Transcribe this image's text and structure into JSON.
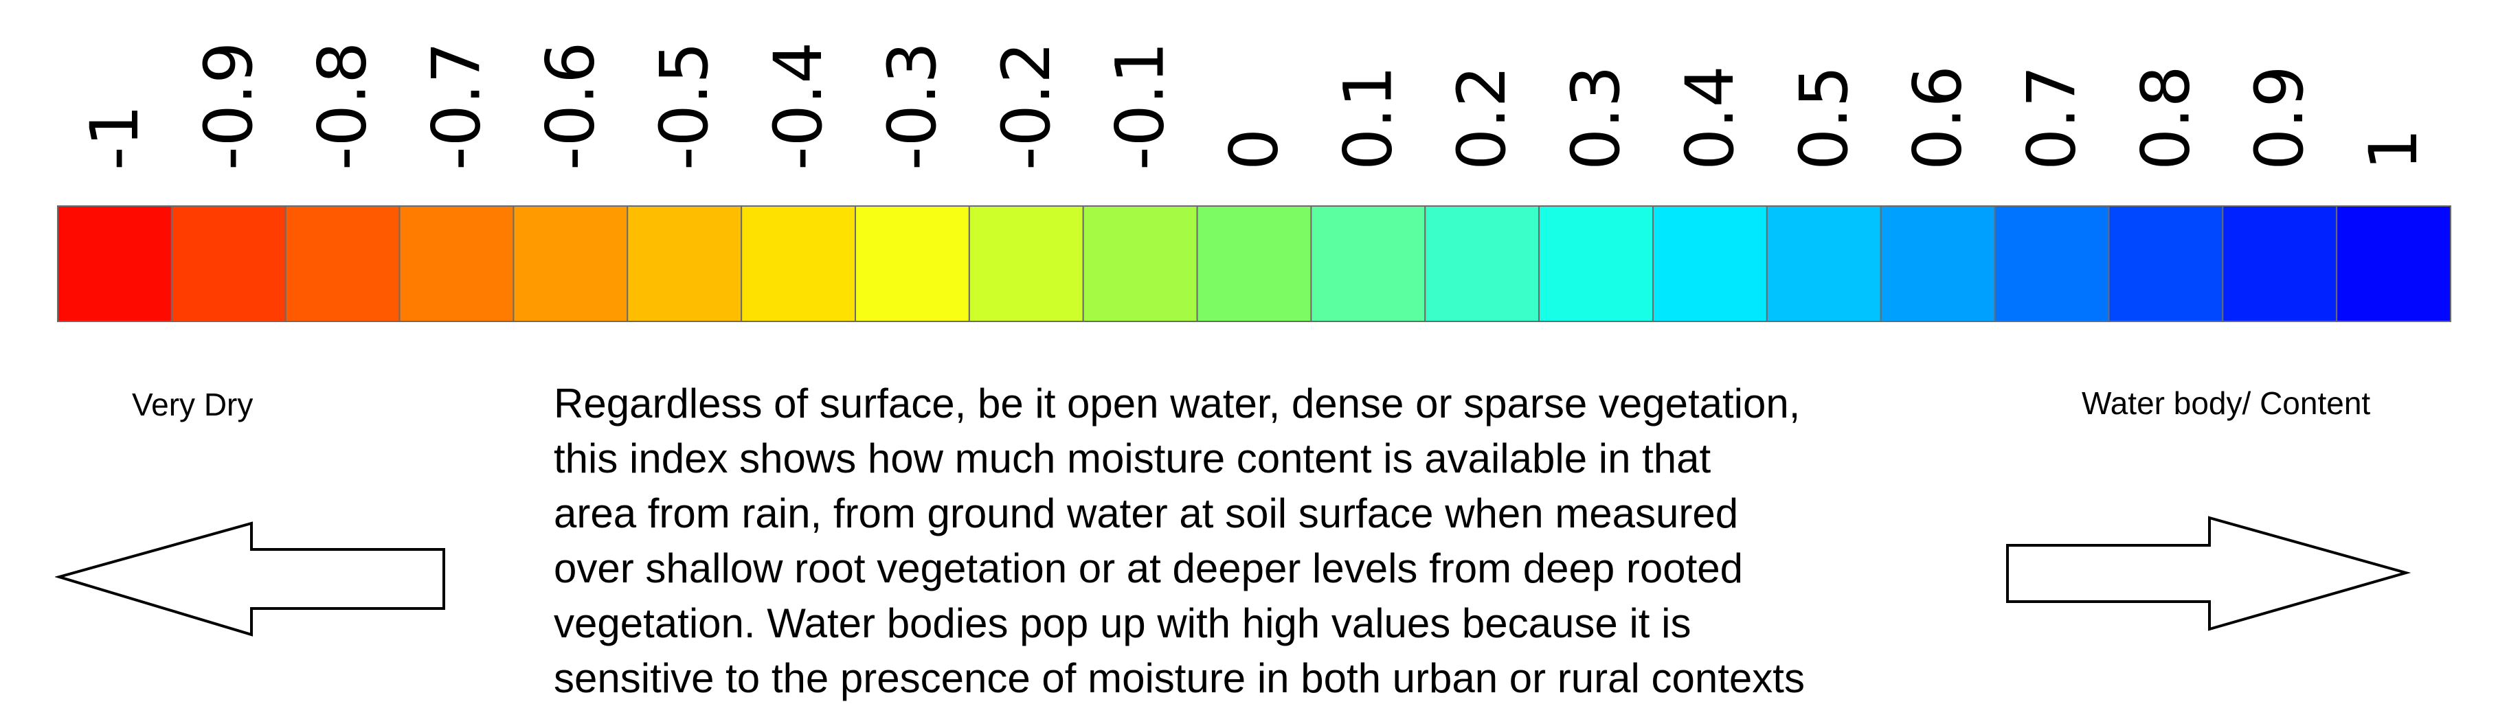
{
  "colorbar": {
    "ticks": [
      "-1",
      "-0.9",
      "-0.8",
      "-0.7",
      "-0.6",
      "-0.5",
      "-0.4",
      "-0.3",
      "-0.2",
      "-0.1",
      "0",
      "0.1",
      "0.2",
      "0.3",
      "0.4",
      "0.5",
      "0.6",
      "0.7",
      "0.8",
      "0.9",
      "1"
    ],
    "colors": [
      "#ff0a00",
      "#ff3d00",
      "#ff5a00",
      "#ff7c00",
      "#ff9b00",
      "#ffbd00",
      "#ffe100",
      "#f8ff13",
      "#ceff2b",
      "#a5fb43",
      "#7dfb62",
      "#5bffa0",
      "#3bffc9",
      "#18ffe8",
      "#00e8ff",
      "#00c3ff",
      "#00a0ff",
      "#0074ff",
      "#0048ff",
      "#0022ff",
      "#0006ff"
    ]
  },
  "labels": {
    "left": "Very Dry",
    "right": "Water body/ Content"
  },
  "description": {
    "lines": [
      "Regardless of surface, be it open water, dense or sparse vegetation,",
      "this index shows how much moisture content is available in that",
      "area from rain, from ground water at soil surface when measured",
      "over shallow root vegetation or at deeper levels from deep rooted",
      "vegetation. Water bodies pop up with high values because it is",
      "sensitive to the prescence of moisture in both urban or rural contexts"
    ]
  },
  "icons": {
    "left_arrow": "left-arrow-icon",
    "right_arrow": "right-arrow-icon"
  }
}
